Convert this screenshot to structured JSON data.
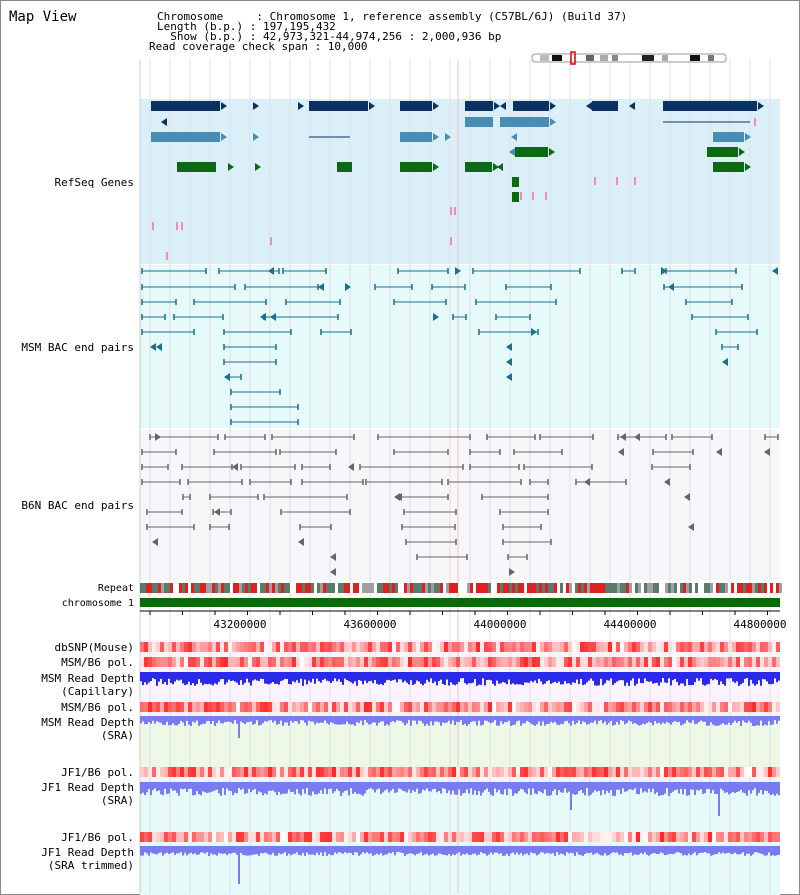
{
  "title": "Map View",
  "header": {
    "line1": "Chromosome     : Chromosome 1, reference assembly (C57BL/6J) (Build 37)",
    "line2": "Length (b.p.) : 197,195,432",
    "line3": "  Show (b.p.) : 42,973,321-44,974,256 : 2,000,936 bp",
    "line4": "Read coverage check span : 10,000"
  },
  "tracks": {
    "refseq": "RefSeq Genes",
    "msm_bac": "MSM BAC end pairs",
    "b6n_bac": "B6N BAC end pairs",
    "repeat": "Repeat",
    "chromosome": "chromosome 1",
    "dbsnp": "dbSNP(Mouse)",
    "msmb6_pol": "MSM/B6 pol.",
    "msm_depth_cap_1": "MSM Read Depth",
    "msm_depth_cap_2": "(Capillary)",
    "msmb6_pol_sra": "MSM/B6 pol.",
    "msm_depth_sra_1": "MSM Read Depth",
    "msm_depth_sra_2": "(SRA)",
    "jf1b6_pol": "JF1/B6 pol.",
    "jf1_depth_sra_1": "JF1 Read Depth",
    "jf1_depth_sra_2": "(SRA)",
    "jf1b6_pol_trim": "JF1/B6 pol.",
    "jf1_depth_trim_1": "JF1 Read Depth",
    "jf1_depth_trim_2": "(SRA trimmed)"
  },
  "axis": {
    "ticks": [
      "43200000",
      "43600000",
      "44000000",
      "44400000",
      "44800000"
    ]
  },
  "colors": {
    "refseq_bg": "#dbeff9",
    "msm_bg": "#e6fafa",
    "b6n_bg": "#f7f7f9",
    "gene_dark": "#0a3162",
    "gene_mid": "#4a8db4",
    "gene_green": "#0d6a14",
    "bac_teal": "#1c6f8e",
    "bac_gray": "#666666",
    "chrom_green": "#0a6a0a",
    "label_blue": "#0000b0",
    "label_teal": "#1b6e8c",
    "label_gray": "#444444",
    "label_orange": "#e59000",
    "depth_blue": "#2020e0",
    "depth_light": "#7a7af2"
  }
}
